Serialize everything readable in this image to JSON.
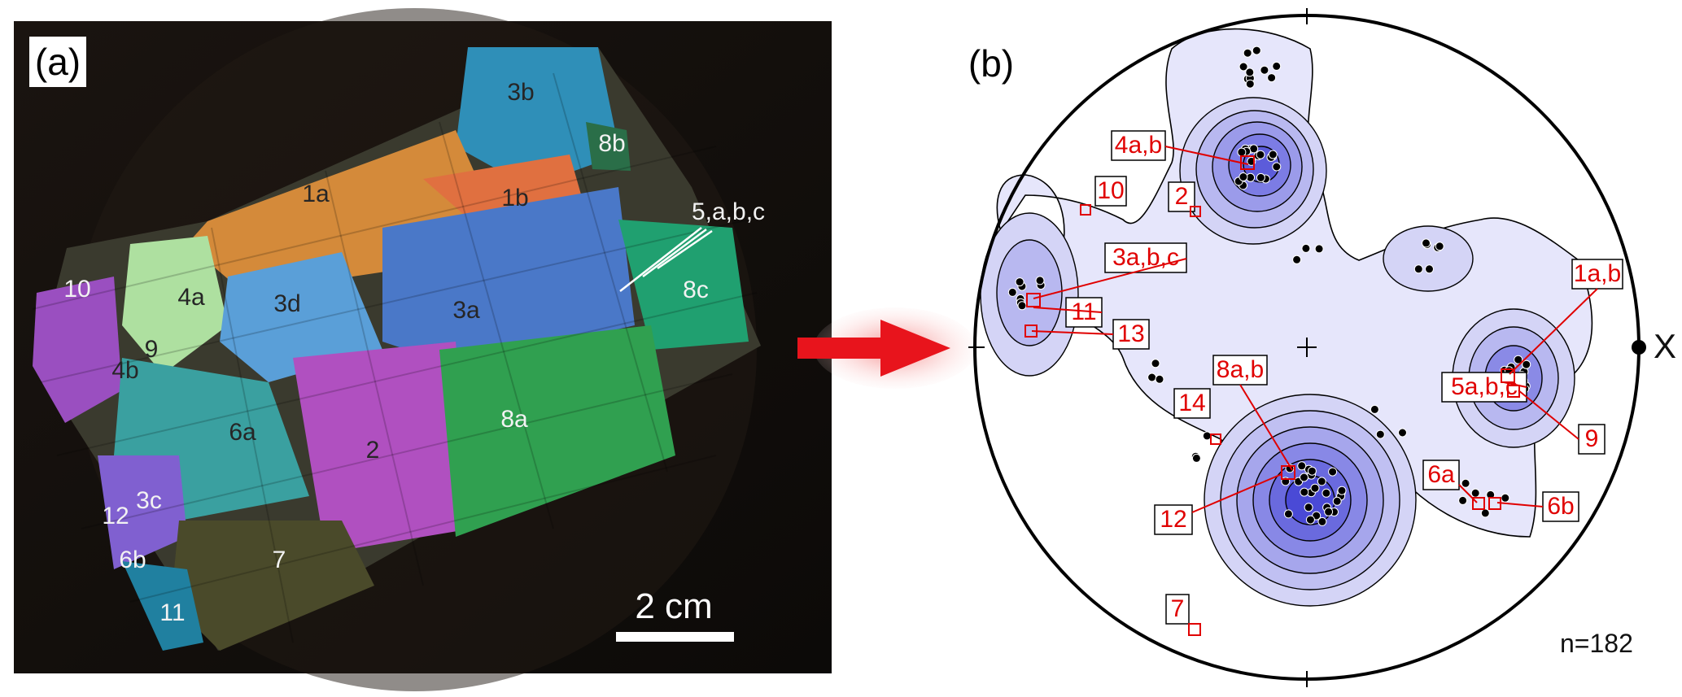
{
  "panel_a": {
    "label": "(a)",
    "scale_bar": "2 cm",
    "grains": [
      {
        "id": "1a",
        "tone": "dark"
      },
      {
        "id": "1b",
        "tone": "dark"
      },
      {
        "id": "3b",
        "tone": "dark"
      },
      {
        "id": "8b",
        "tone": "light"
      },
      {
        "id": "5,a,b,c",
        "tone": "light"
      },
      {
        "id": "8c",
        "tone": "light"
      },
      {
        "id": "10",
        "tone": "light"
      },
      {
        "id": "4a",
        "tone": "dark"
      },
      {
        "id": "3d",
        "tone": "dark"
      },
      {
        "id": "3a",
        "tone": "dark"
      },
      {
        "id": "9",
        "tone": "dark"
      },
      {
        "id": "4b",
        "tone": "dark"
      },
      {
        "id": "6a",
        "tone": "dark"
      },
      {
        "id": "2",
        "tone": "dark"
      },
      {
        "id": "8a",
        "tone": "light"
      },
      {
        "id": "3c",
        "tone": "light"
      },
      {
        "id": "12",
        "tone": "light"
      },
      {
        "id": "6b",
        "tone": "light"
      },
      {
        "id": "7",
        "tone": "light"
      },
      {
        "id": "11",
        "tone": "light"
      }
    ]
  },
  "panel_b": {
    "label": "(b)",
    "axis_label": "X",
    "n_label": "n=182",
    "callouts": [
      "10",
      "2",
      "4a,b",
      "3a,b,c",
      "11",
      "13",
      "1a,b",
      "5a,b,c",
      "9",
      "8a,b",
      "14",
      "12",
      "6a",
      "6b",
      "7"
    ]
  },
  "colors": {
    "callout_red": "#e00000",
    "arrow_red": "#e8141c",
    "contour_fill": "#4a4ae0",
    "dots": "#000000"
  }
}
